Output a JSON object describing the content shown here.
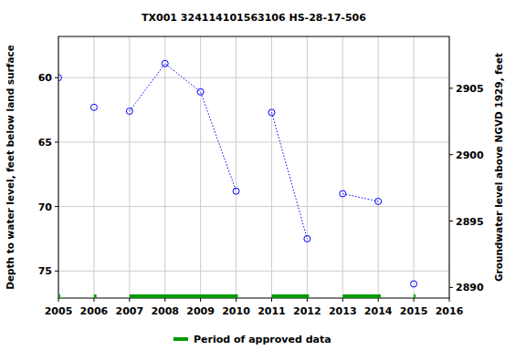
{
  "chart_data": {
    "type": "scatter",
    "title": "TX001 324114101563106 HS-28-17-506",
    "ylabel": "Depth to water level, feet below land surface",
    "y2label": "Groundwater level above NGVD 1929, feet",
    "xlim": [
      2005,
      2016
    ],
    "xticks": [
      2005,
      2006,
      2007,
      2008,
      2009,
      2010,
      2011,
      2012,
      2013,
      2014,
      2015,
      2016
    ],
    "ylim": [
      77.1,
      56.8
    ],
    "yticks": [
      60,
      65,
      70,
      75
    ],
    "y2lim": [
      2889.2,
      2908.9
    ],
    "y2ticks": [
      2890,
      2895,
      2900,
      2905
    ],
    "grid": true,
    "series": [
      {
        "x": [
          2005
        ],
        "values": [
          60.0
        ],
        "color": "#0000ff",
        "marker": "circle",
        "line_style": "dotted"
      },
      {
        "x": [
          2006
        ],
        "values": [
          62.3
        ],
        "color": "#0000ff",
        "marker": "circle",
        "line_style": "dotted"
      },
      {
        "x": [
          2007,
          2008,
          2009,
          2010
        ],
        "values": [
          62.6,
          58.9,
          61.1,
          68.8
        ],
        "color": "#0000ff",
        "marker": "circle",
        "line_style": "dotted"
      },
      {
        "x": [
          2011,
          2012
        ],
        "values": [
          62.7,
          72.5
        ],
        "color": "#0000ff",
        "marker": "circle",
        "line_style": "dotted"
      },
      {
        "x": [
          2013,
          2014
        ],
        "values": [
          69.0,
          69.6
        ],
        "color": "#0000ff",
        "marker": "circle",
        "line_style": "dotted"
      },
      {
        "x": [
          2015
        ],
        "values": [
          76.0
        ],
        "color": "#0000ff",
        "marker": "circle",
        "line_style": "dotted"
      }
    ],
    "approved": {
      "name": "Period of approved data",
      "color": "#009900",
      "periods": [
        [
          2005,
          2005.05
        ],
        [
          2006,
          2006.07
        ],
        [
          2007,
          2010.05
        ],
        [
          2011,
          2012.05
        ],
        [
          2013,
          2014.07
        ],
        [
          2015,
          2015.05
        ]
      ]
    },
    "legend": "bottom"
  }
}
